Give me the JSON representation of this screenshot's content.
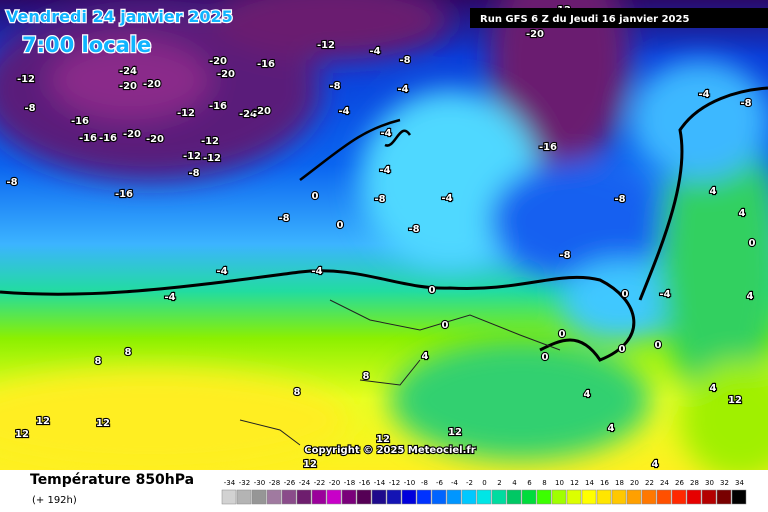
{
  "header": {
    "date": "Vendredi 24 janvier 2025",
    "time": "7:00 locale",
    "run": "Run GFS 6 Z du Jeudi 16 janvier 2025"
  },
  "map": {
    "copyright": "Copyright © 2025 Meteociel.fr",
    "contour_labels": [
      -24,
      -20,
      -20,
      -12,
      -8,
      -16,
      -16,
      -16,
      -20,
      -20,
      -12,
      -12,
      -12,
      -12,
      -8,
      -16,
      -8,
      -16,
      -20,
      -20,
      -16,
      -24,
      -20,
      -12,
      -8,
      -4,
      -4,
      -8,
      -4,
      -4,
      -4,
      -8,
      -8,
      -4,
      -4,
      -4,
      0,
      0,
      -8,
      -4,
      -16,
      -20,
      -12,
      -4,
      -8,
      -8,
      -8,
      0,
      0,
      0,
      0,
      0,
      -4,
      0,
      0,
      4,
      4,
      0,
      4,
      4,
      12,
      8,
      8,
      8,
      8,
      4,
      4,
      4,
      4,
      12,
      12,
      12,
      12,
      12,
      12
    ]
  },
  "footer": {
    "title": "Température 850hPa",
    "lead": "(+ 192h)"
  },
  "legend": {
    "values": [
      -34,
      -32,
      -30,
      -28,
      -26,
      -24,
      -22,
      -20,
      -18,
      -16,
      -14,
      -12,
      -10,
      -8,
      -6,
      -4,
      -2,
      0,
      2,
      4,
      6,
      8,
      10,
      12,
      14,
      16,
      18,
      20,
      22,
      24,
      26,
      28,
      30,
      32,
      34
    ],
    "colors": [
      "#d2d2d2",
      "#b4b4b4",
      "#969696",
      "#a07aa0",
      "#8a4c8a",
      "#6e1e6e",
      "#9b009b",
      "#c800c8",
      "#7a007a",
      "#550055",
      "#1e0a8c",
      "#1414b4",
      "#0000dc",
      "#0032ff",
      "#0064ff",
      "#0096ff",
      "#00c8ff",
      "#00e6e6",
      "#00dca0",
      "#00c864",
      "#00dc3c",
      "#3cff00",
      "#a0ff00",
      "#dcff00",
      "#ffff00",
      "#ffe600",
      "#ffc800",
      "#ffa000",
      "#ff7800",
      "#ff5000",
      "#ff2800",
      "#e60000",
      "#b40000",
      "#780000",
      "#000000"
    ]
  }
}
